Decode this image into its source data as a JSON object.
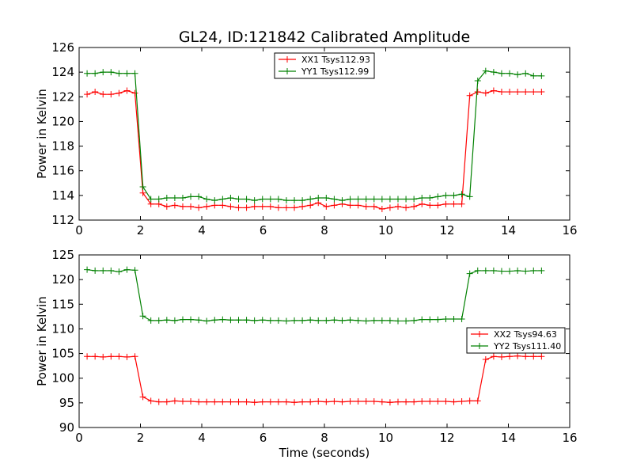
{
  "title": "GL24, ID:121842 Calibrated Amplitude",
  "chart_data": [
    {
      "type": "line",
      "xlabel": "",
      "ylabel": "Power in Kelvin",
      "xlim": [
        0,
        16
      ],
      "ylim": [
        112,
        126
      ],
      "xticks": [
        0,
        2,
        4,
        6,
        8,
        10,
        12,
        14,
        16
      ],
      "yticks": [
        112,
        114,
        116,
        118,
        120,
        122,
        124,
        126
      ],
      "grid": false,
      "legend_position": "upper-center",
      "x": [
        0.26,
        0.52,
        0.78,
        1.04,
        1.3,
        1.56,
        1.82,
        2.08,
        2.34,
        2.6,
        2.86,
        3.12,
        3.38,
        3.64,
        3.9,
        4.16,
        4.42,
        4.68,
        4.94,
        5.2,
        5.46,
        5.72,
        5.98,
        6.24,
        6.5,
        6.76,
        7.02,
        7.28,
        7.54,
        7.8,
        8.06,
        8.32,
        8.58,
        8.84,
        9.1,
        9.36,
        9.62,
        9.88,
        10.14,
        10.4,
        10.66,
        10.92,
        11.18,
        11.44,
        11.7,
        11.96,
        12.22,
        12.48,
        12.74,
        13.0,
        13.26,
        13.52,
        13.78,
        14.04,
        14.3,
        14.56,
        14.82,
        15.08
      ],
      "series": [
        {
          "name": "XX1 Tsys112.93",
          "color": "#ff0000",
          "values": [
            122.2,
            122.4,
            122.2,
            122.2,
            122.3,
            122.5,
            122.3,
            114.2,
            113.3,
            113.3,
            113.1,
            113.2,
            113.1,
            113.1,
            113.0,
            113.1,
            113.2,
            113.2,
            113.1,
            113.0,
            113.0,
            113.1,
            113.1,
            113.1,
            113.0,
            113.0,
            113.0,
            113.1,
            113.2,
            113.4,
            113.1,
            113.2,
            113.3,
            113.2,
            113.2,
            113.1,
            113.1,
            112.9,
            113.0,
            113.1,
            113.0,
            113.1,
            113.3,
            113.2,
            113.2,
            113.3,
            113.3,
            113.3,
            122.1,
            122.4,
            122.3,
            122.5,
            122.4,
            122.4,
            122.4,
            122.4,
            122.4,
            122.4
          ]
        },
        {
          "name": "YY1 Tsys112.99",
          "color": "#008000",
          "values": [
            123.9,
            123.9,
            124.0,
            124.0,
            123.9,
            123.9,
            123.9,
            114.7,
            113.7,
            113.7,
            113.8,
            113.8,
            113.8,
            113.9,
            113.9,
            113.7,
            113.6,
            113.7,
            113.8,
            113.7,
            113.7,
            113.6,
            113.7,
            113.7,
            113.7,
            113.6,
            113.6,
            113.6,
            113.7,
            113.8,
            113.8,
            113.7,
            113.6,
            113.7,
            113.7,
            113.7,
            113.7,
            113.7,
            113.7,
            113.7,
            113.7,
            113.7,
            113.8,
            113.8,
            113.9,
            114.0,
            114.0,
            114.1,
            113.9,
            123.3,
            124.1,
            124.0,
            123.9,
            123.9,
            123.8,
            123.9,
            123.7,
            123.7
          ]
        }
      ]
    },
    {
      "type": "line",
      "xlabel": "Time (seconds)",
      "ylabel": "Power in Kelvin",
      "xlim": [
        0,
        16
      ],
      "ylim": [
        90,
        125
      ],
      "xticks": [
        0,
        2,
        4,
        6,
        8,
        10,
        12,
        14,
        16
      ],
      "yticks": [
        90,
        95,
        100,
        105,
        110,
        115,
        120,
        125
      ],
      "grid": false,
      "legend_position": "right",
      "x": [
        0.26,
        0.52,
        0.78,
        1.04,
        1.3,
        1.56,
        1.82,
        2.08,
        2.34,
        2.6,
        2.86,
        3.12,
        3.38,
        3.64,
        3.9,
        4.16,
        4.42,
        4.68,
        4.94,
        5.2,
        5.46,
        5.72,
        5.98,
        6.24,
        6.5,
        6.76,
        7.02,
        7.28,
        7.54,
        7.8,
        8.06,
        8.32,
        8.58,
        8.84,
        9.1,
        9.36,
        9.62,
        9.88,
        10.14,
        10.4,
        10.66,
        10.92,
        11.18,
        11.44,
        11.7,
        11.96,
        12.22,
        12.48,
        12.74,
        13.0,
        13.26,
        13.52,
        13.78,
        14.04,
        14.3,
        14.56,
        14.82,
        15.08
      ],
      "series": [
        {
          "name": "XX2 Tsys94.63",
          "color": "#ff0000",
          "values": [
            104.4,
            104.4,
            104.3,
            104.4,
            104.4,
            104.3,
            104.4,
            96.2,
            95.4,
            95.2,
            95.2,
            95.4,
            95.3,
            95.3,
            95.2,
            95.2,
            95.2,
            95.2,
            95.2,
            95.2,
            95.2,
            95.1,
            95.2,
            95.2,
            95.2,
            95.2,
            95.1,
            95.2,
            95.2,
            95.3,
            95.2,
            95.3,
            95.2,
            95.3,
            95.3,
            95.3,
            95.3,
            95.2,
            95.1,
            95.2,
            95.2,
            95.2,
            95.3,
            95.3,
            95.3,
            95.3,
            95.2,
            95.3,
            95.4,
            95.4,
            103.8,
            104.4,
            104.3,
            104.4,
            104.5,
            104.4,
            104.4,
            104.4
          ]
        },
        {
          "name": "YY2 Tsys111.40",
          "color": "#008000",
          "values": [
            122.0,
            121.8,
            121.8,
            121.8,
            121.6,
            122.0,
            121.9,
            112.6,
            111.7,
            111.7,
            111.8,
            111.7,
            111.9,
            111.9,
            111.8,
            111.6,
            111.8,
            111.9,
            111.8,
            111.8,
            111.8,
            111.7,
            111.8,
            111.7,
            111.7,
            111.6,
            111.7,
            111.7,
            111.8,
            111.7,
            111.7,
            111.8,
            111.7,
            111.8,
            111.7,
            111.6,
            111.7,
            111.7,
            111.7,
            111.6,
            111.6,
            111.7,
            111.9,
            111.9,
            111.9,
            112.0,
            112.0,
            112.0,
            121.2,
            121.8,
            121.8,
            121.8,
            121.7,
            121.7,
            121.8,
            121.7,
            121.8,
            121.8
          ]
        }
      ]
    }
  ]
}
